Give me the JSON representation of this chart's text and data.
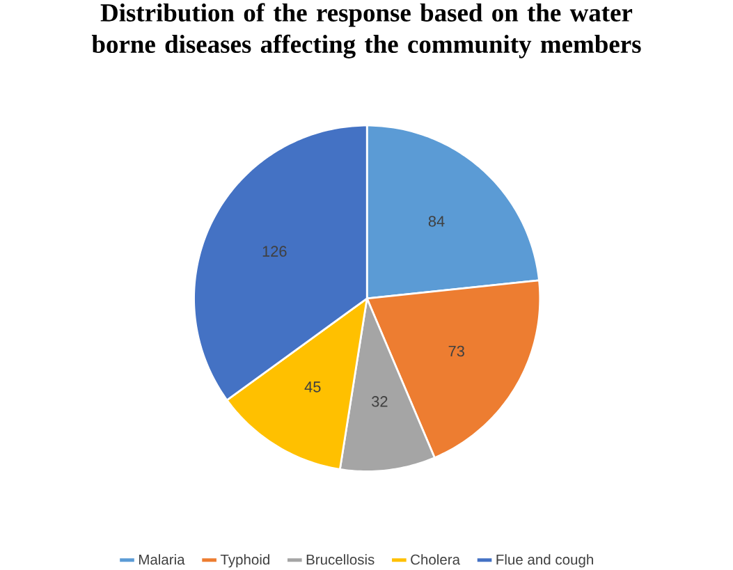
{
  "chart_data": {
    "type": "pie",
    "title": "Distribution of the response based on the water borne diseases affecting the community members",
    "categories": [
      "Malaria",
      "Typhoid",
      "Brucellosis",
      "Cholera",
      "Flue and cough"
    ],
    "values": [
      84,
      73,
      32,
      45,
      126
    ],
    "colors": [
      "#5b9bd5",
      "#ed7d31",
      "#a5a5a5",
      "#ffc000",
      "#4472c4"
    ],
    "data_labels": true,
    "legend": "bottom"
  }
}
